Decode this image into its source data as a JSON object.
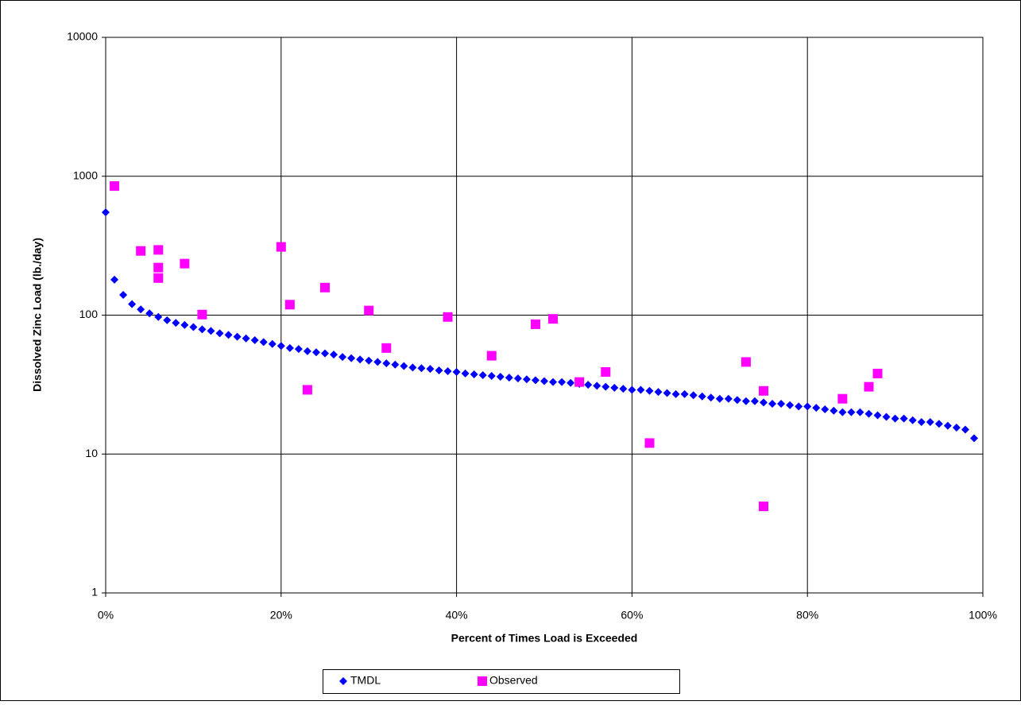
{
  "chart_data": {
    "type": "scatter",
    "y_label": "Dissolved Zinc Load (lb./day)",
    "x_label": "Percent of Times Load is Exceeded",
    "xlim": [
      0,
      100
    ],
    "xticks": [
      {
        "value": 0,
        "label": "0%"
      },
      {
        "value": 20,
        "label": "20%"
      },
      {
        "value": 40,
        "label": "40%"
      },
      {
        "value": 60,
        "label": "60%"
      },
      {
        "value": 80,
        "label": "80%"
      },
      {
        "value": 100,
        "label": "100%"
      }
    ],
    "ylim": [
      1,
      10000
    ],
    "yticks": [
      1,
      10,
      100,
      1000,
      10000
    ],
    "y_log": true,
    "grid": true,
    "legend": "bottom",
    "series": [
      {
        "name": "TMDL",
        "color": "#0000ff",
        "marker": "diamond",
        "x": [
          0,
          1,
          2,
          3,
          4,
          5,
          6,
          7,
          8,
          9,
          10,
          11,
          12,
          13,
          14,
          15,
          16,
          17,
          18,
          19,
          20,
          21,
          22,
          23,
          24,
          25,
          26,
          27,
          28,
          29,
          30,
          31,
          32,
          33,
          34,
          35,
          36,
          37,
          38,
          39,
          40,
          41,
          42,
          43,
          44,
          45,
          46,
          47,
          48,
          49,
          50,
          51,
          52,
          53,
          54,
          55,
          56,
          57,
          58,
          59,
          60,
          61,
          62,
          63,
          64,
          65,
          66,
          67,
          68,
          69,
          70,
          71,
          72,
          73,
          74,
          75,
          76,
          77,
          78,
          79,
          80,
          81,
          82,
          83,
          84,
          85,
          86,
          87,
          88,
          89,
          90,
          91,
          92,
          93,
          94,
          95,
          96,
          97,
          98,
          99
        ],
        "values": [
          550,
          180,
          140,
          120,
          110,
          103,
          97,
          92,
          88,
          85,
          82,
          79,
          77,
          74,
          72,
          70,
          68,
          66,
          64,
          62,
          60,
          58,
          57,
          55,
          54,
          53,
          52,
          50,
          49,
          48,
          47,
          46,
          45,
          44,
          43,
          42,
          41.5,
          41,
          40,
          39.5,
          39,
          38,
          37.5,
          37,
          36.5,
          36,
          35.5,
          35,
          34.5,
          34,
          33.5,
          33,
          33,
          32.5,
          32,
          31.5,
          31,
          30.5,
          30,
          29.5,
          29,
          29,
          28.5,
          28,
          27.5,
          27,
          27,
          26.5,
          26,
          25.5,
          25,
          25,
          24.5,
          24,
          24,
          23.5,
          23,
          23,
          22.5,
          22,
          22,
          21.5,
          21,
          20.5,
          20,
          20,
          20,
          19.5,
          19,
          18.5,
          18,
          18,
          17.5,
          17,
          17,
          16.5,
          16,
          15.5,
          15,
          13
        ]
      },
      {
        "name": "Observed",
        "color": "#ff00ff",
        "marker": "square",
        "x": [
          1,
          4,
          6,
          6,
          6,
          9,
          11,
          20,
          21,
          23,
          25,
          30,
          32,
          39,
          44,
          49,
          51,
          54,
          57,
          62,
          73,
          75,
          75,
          84,
          87,
          88
        ],
        "values": [
          850,
          290,
          295,
          220,
          185,
          235,
          101,
          310,
          119,
          29,
          158,
          108,
          58,
          97,
          51,
          86,
          94,
          33,
          39,
          12,
          46,
          28.5,
          4.2,
          25,
          30.5,
          38
        ]
      }
    ]
  }
}
